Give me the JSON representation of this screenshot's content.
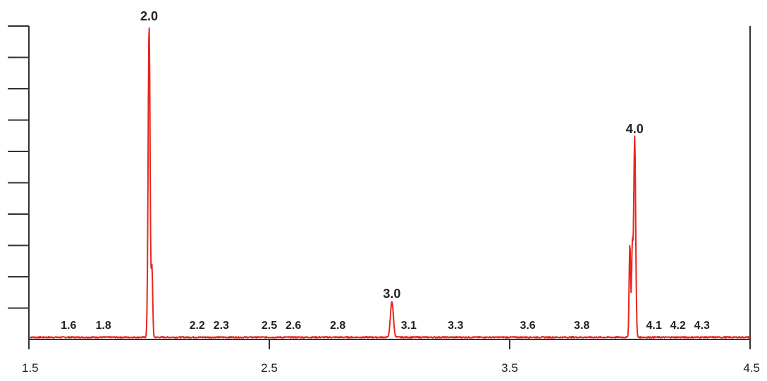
{
  "chart_data": {
    "type": "line",
    "title": "",
    "xlabel": "",
    "ylabel": "",
    "xlim": [
      1.5,
      4.5
    ],
    "ylim": [
      0,
      1.0
    ],
    "grid": false,
    "x_ticks": [
      "1.5",
      "2.5",
      "3.5",
      "4.5"
    ],
    "y_tick_count": 10,
    "line_color": "#e8261e",
    "baseline_level": 0.005,
    "peaks": [
      {
        "label": "1.6",
        "x": 1.665,
        "height": 0.0
      },
      {
        "label": "1.8",
        "x": 1.81,
        "height": 0.0
      },
      {
        "label": "2.0",
        "x": 2.0,
        "height": 1.0
      },
      {
        "label": "2.2",
        "x": 2.2,
        "height": 0.0
      },
      {
        "label": "2.3",
        "x": 2.3,
        "height": 0.0
      },
      {
        "label": "2.5",
        "x": 2.5,
        "height": 0.0
      },
      {
        "label": "2.6",
        "x": 2.6,
        "height": 0.0
      },
      {
        "label": "2.8",
        "x": 2.785,
        "height": 0.0
      },
      {
        "label": "3.0",
        "x": 3.01,
        "height": 0.115
      },
      {
        "label": "3.1",
        "x": 3.08,
        "height": 0.0
      },
      {
        "label": "3.3",
        "x": 3.275,
        "height": 0.0
      },
      {
        "label": "3.6",
        "x": 3.575,
        "height": 0.0
      },
      {
        "label": "3.8",
        "x": 3.8,
        "height": 0.0
      },
      {
        "label": "4.0",
        "x": 4.02,
        "height": 0.64
      },
      {
        "label": "4.1",
        "x": 4.1,
        "height": 0.0
      },
      {
        "label": "4.2",
        "x": 4.2,
        "height": 0.0
      },
      {
        "label": "4.3",
        "x": 4.3,
        "height": 0.0
      }
    ]
  }
}
